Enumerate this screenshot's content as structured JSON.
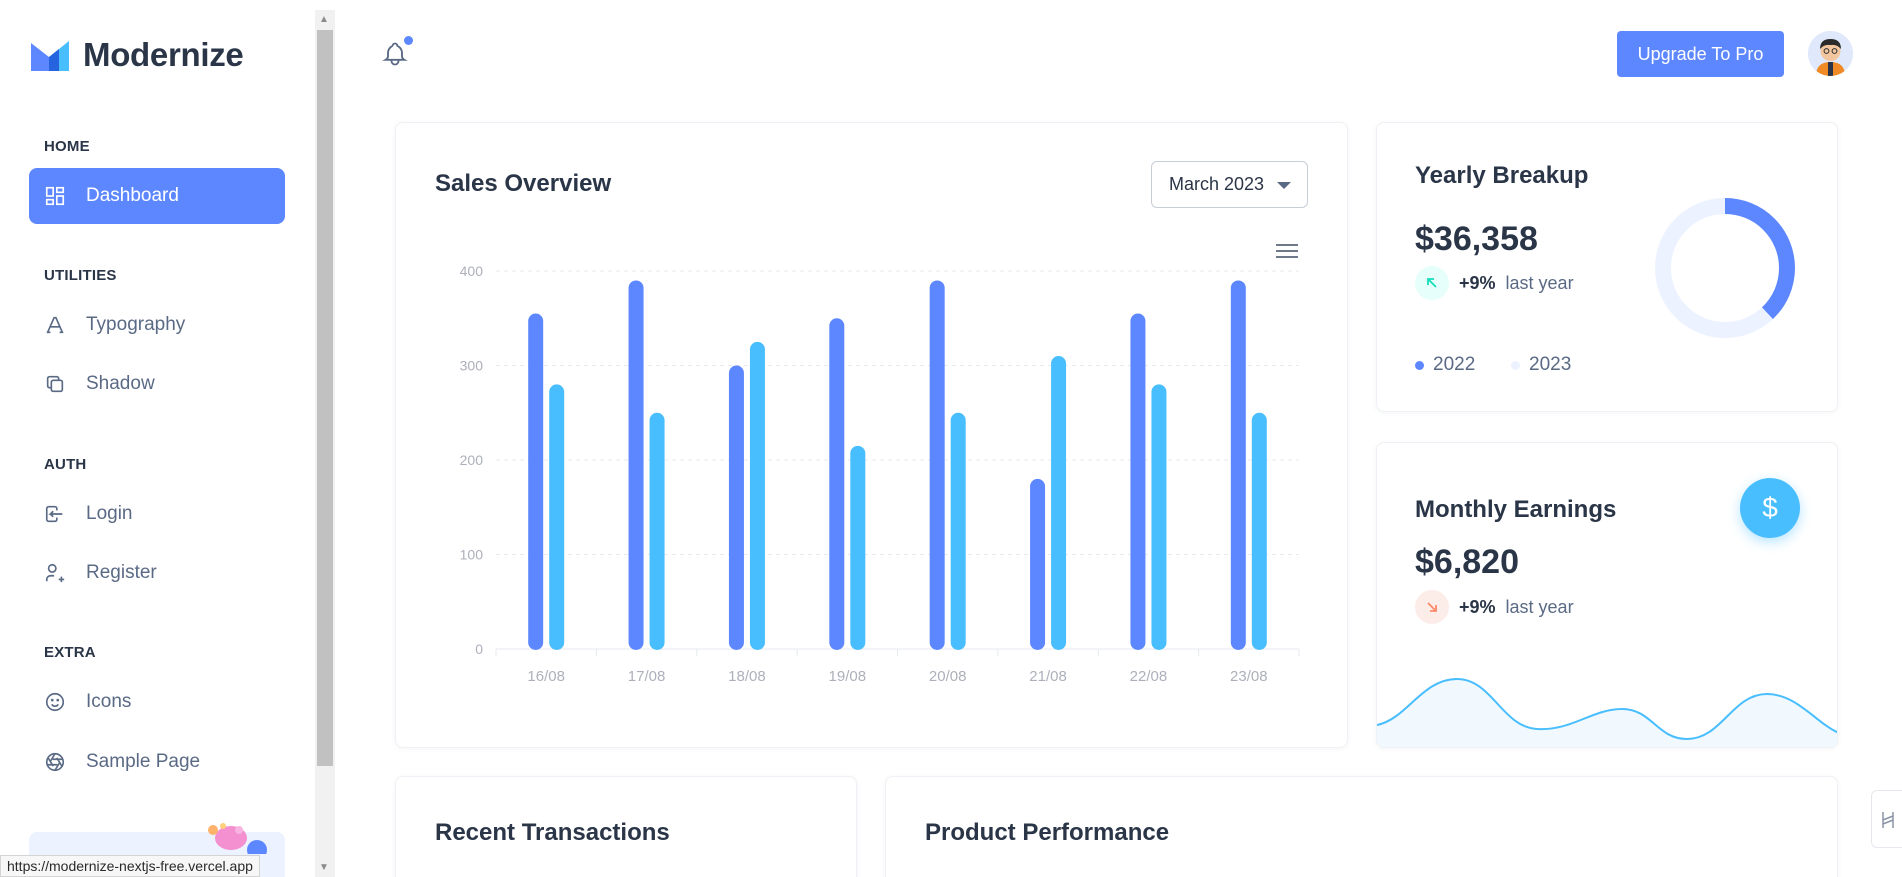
{
  "brand": {
    "name": "Modernize"
  },
  "sidebar": {
    "sections": [
      {
        "title": "HOME"
      },
      {
        "title": "UTILITIES"
      },
      {
        "title": "AUTH"
      },
      {
        "title": "EXTRA"
      }
    ],
    "items": [
      {
        "label": "Dashboard",
        "icon": "dashboard-icon",
        "active": true
      },
      {
        "label": "Typography",
        "icon": "typography-icon"
      },
      {
        "label": "Shadow",
        "icon": "copy-icon"
      },
      {
        "label": "Login",
        "icon": "login-icon"
      },
      {
        "label": "Register",
        "icon": "user-plus-icon"
      },
      {
        "label": "Icons",
        "icon": "mood-smile-icon"
      },
      {
        "label": "Sample Page",
        "icon": "aperture-icon"
      }
    ]
  },
  "status_bar": {
    "url": "https://modernize-nextjs-free.vercel.app"
  },
  "header": {
    "upgrade_label": "Upgrade To Pro",
    "notification_icon": "bell-icon",
    "avatar_icon": "user-avatar"
  },
  "sales_overview": {
    "title": "Sales Overview",
    "period": "March 2023",
    "menu_icon": "menu-icon"
  },
  "chart_data": {
    "type": "bar",
    "categories": [
      "16/08",
      "17/08",
      "18/08",
      "19/08",
      "20/08",
      "21/08",
      "22/08",
      "23/08"
    ],
    "series": [
      {
        "values": [
          355,
          390,
          300,
          350,
          390,
          180,
          355,
          390
        ],
        "color": "#5d87ff"
      },
      {
        "values": [
          280,
          250,
          325,
          215,
          250,
          310,
          280,
          250
        ],
        "color": "#49beff"
      }
    ],
    "yticks": [
      0,
      100,
      200,
      300,
      400
    ],
    "ylim": [
      0,
      400
    ],
    "grid": true,
    "legend": false
  },
  "yearly_breakup": {
    "title": "Yearly Breakup",
    "value": "$36,358",
    "change": "+9%",
    "period": "last year",
    "trend_icon": "arrow-up-left-icon",
    "legend": [
      {
        "label": "2022",
        "color": "#5d87ff"
      },
      {
        "label": "2023",
        "color": "#ecf2ff"
      }
    ],
    "donut": [
      {
        "label": "2022",
        "value": 38,
        "color": "#5d87ff"
      },
      {
        "label": "2023",
        "value": 62,
        "color": "#ecf2ff"
      }
    ]
  },
  "monthly_earnings": {
    "title": "Monthly Earnings",
    "value": "$6,820",
    "change": "+9%",
    "period": "last year",
    "trend_icon": "arrow-down-right-icon",
    "fab_icon": "currency-dollar-icon",
    "fab_symbol": "$"
  },
  "recent_transactions": {
    "title": "Recent Transactions"
  },
  "product_performance": {
    "title": "Product Performance"
  }
}
